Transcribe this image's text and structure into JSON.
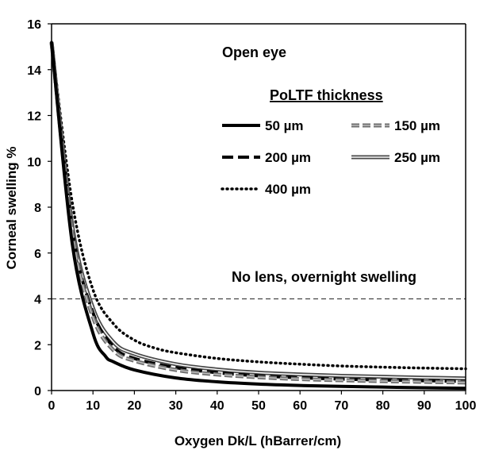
{
  "chart_data": {
    "type": "line",
    "title": "Open eye",
    "xlabel": "Oxygen Dk/L (hBarrer/cm)",
    "ylabel": "Corneal swelling %",
    "xlim": [
      0,
      100
    ],
    "ylim": [
      0,
      16
    ],
    "x_ticks": [
      "0",
      "10",
      "20",
      "30",
      "40",
      "50",
      "60",
      "70",
      "80",
      "90",
      "100"
    ],
    "y_ticks": [
      "0",
      "2",
      "4",
      "6",
      "8",
      "10",
      "12",
      "14",
      "16"
    ],
    "grid": false,
    "legend_title": "PoLTF thickness",
    "legend_position": "top-right",
    "reference_line": {
      "y": 4,
      "label": "No lens, overnight swelling",
      "style": "dashed"
    },
    "series": [
      {
        "name": "50 µm",
        "style": "solid-thick",
        "color": "#000000",
        "x": [
          0,
          5,
          10,
          13,
          15,
          20,
          30,
          40,
          50,
          60,
          70,
          80,
          90,
          100
        ],
        "y": [
          15.2,
          6.4,
          2.5,
          1.5,
          1.25,
          0.9,
          0.55,
          0.38,
          0.28,
          0.22,
          0.18,
          0.15,
          0.12,
          0.1
        ]
      },
      {
        "name": "150 µm",
        "style": "dashed-gray",
        "color": "#7a7a7a",
        "x": [
          0,
          5,
          10,
          15,
          20,
          30,
          40,
          50,
          60,
          70,
          80,
          90,
          100
        ],
        "y": [
          15.2,
          6.9,
          3.2,
          1.75,
          1.3,
          0.9,
          0.7,
          0.58,
          0.5,
          0.45,
          0.41,
          0.38,
          0.35
        ]
      },
      {
        "name": "200 µm",
        "style": "dashed-thick",
        "color": "#000000",
        "x": [
          0,
          5,
          10,
          15,
          20,
          30,
          40,
          50,
          60,
          70,
          80,
          90,
          100
        ],
        "y": [
          15.2,
          7.0,
          3.4,
          1.9,
          1.4,
          1.0,
          0.78,
          0.64,
          0.56,
          0.5,
          0.46,
          0.43,
          0.4
        ]
      },
      {
        "name": "250 µm",
        "style": "double-gray",
        "color": "#555555",
        "x": [
          0,
          5,
          10,
          15,
          20,
          30,
          40,
          50,
          60,
          70,
          80,
          90,
          100
        ],
        "y": [
          15.2,
          7.2,
          3.6,
          2.1,
          1.6,
          1.15,
          0.92,
          0.78,
          0.7,
          0.64,
          0.6,
          0.56,
          0.53
        ]
      },
      {
        "name": "400 µm",
        "style": "dotted",
        "color": "#000000",
        "x": [
          0,
          5,
          10,
          15,
          20,
          25,
          30,
          40,
          50,
          60,
          70,
          80,
          90,
          100
        ],
        "y": [
          15.2,
          8.2,
          4.4,
          2.9,
          2.2,
          1.85,
          1.65,
          1.4,
          1.25,
          1.15,
          1.07,
          1.02,
          0.98,
          0.95
        ]
      }
    ]
  }
}
